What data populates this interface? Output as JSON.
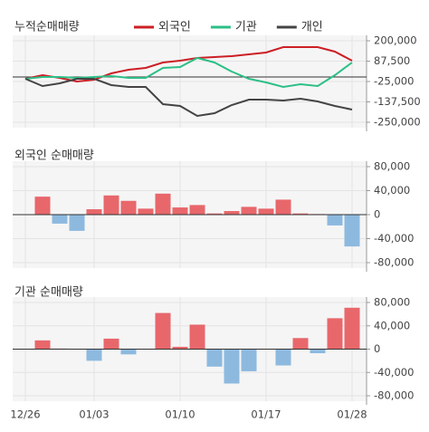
{
  "chart_data": [
    {
      "type": "line",
      "title": "누적순매매량",
      "series": [
        {
          "name": "외국인",
          "color": "#cc1f25",
          "values": [
            -10000,
            10000,
            -5000,
            -25000,
            -15000,
            20000,
            40000,
            50000,
            80000,
            90000,
            105000,
            110000,
            115000,
            125000,
            135000,
            165000,
            165000,
            165000,
            140000,
            90000
          ]
        },
        {
          "name": "기관",
          "color": "#2dbf87",
          "values": [
            -10000,
            0,
            0,
            -5000,
            0,
            5000,
            -5000,
            -5000,
            50000,
            55000,
            105000,
            80000,
            30000,
            -10000,
            -30000,
            -55000,
            -40000,
            -50000,
            10000,
            80000
          ]
        },
        {
          "name": "개인",
          "color": "#444444",
          "values": [
            -10000,
            -50000,
            -35000,
            -10000,
            -10000,
            -45000,
            -55000,
            -55000,
            -150000,
            -160000,
            -215000,
            -200000,
            -155000,
            -125000,
            -125000,
            -130000,
            -120000,
            -135000,
            -160000,
            -180000
          ]
        }
      ],
      "ylim": [
        -250000,
        200000
      ],
      "yticks": [
        {
          "value": 200000,
          "label": "200,000"
        },
        {
          "value": 87500,
          "label": "87,500"
        },
        {
          "value": -25000,
          "label": "-25,000"
        },
        {
          "value": -137500,
          "label": "-137,500"
        },
        {
          "value": -250000,
          "label": "-250,000"
        }
      ],
      "legend": "top",
      "grid": true
    },
    {
      "type": "bar",
      "title": "외국인 순매매량",
      "values": [
        0,
        30000,
        -15000,
        -27000,
        9000,
        32000,
        23000,
        10000,
        35000,
        12000,
        16000,
        2000,
        6000,
        13000,
        10000,
        25000,
        2000,
        1000,
        -18000,
        -53000
      ],
      "color_positive": "#e8676b",
      "color_negative": "#8db9df",
      "ylim": [
        -80000,
        80000
      ],
      "yticks": [
        {
          "value": 80000,
          "label": "80,000"
        },
        {
          "value": 40000,
          "label": "40,000"
        },
        0,
        {
          "value": -40000,
          "label": "-40,000"
        },
        {
          "value": -80000,
          "label": "-80,000"
        }
      ],
      "grid": true
    },
    {
      "type": "bar",
      "title": "기관 순매매량",
      "categories": [
        "12/26",
        null,
        null,
        null,
        "01/03",
        null,
        null,
        null,
        null,
        "01/10",
        null,
        null,
        null,
        null,
        "01/17",
        null,
        null,
        null,
        null,
        "01/28"
      ],
      "values": [
        0,
        15000,
        1000,
        0,
        -20000,
        18000,
        -9000,
        0,
        62000,
        4000,
        42000,
        -30000,
        -59000,
        -38000,
        0,
        -28000,
        19000,
        -7000,
        53000,
        71000
      ],
      "color_positive": "#e8676b",
      "color_negative": "#8db9df",
      "ylim": [
        -80000,
        80000
      ],
      "yticks": [
        {
          "value": 80000,
          "label": "80,000"
        },
        {
          "value": 40000,
          "label": "40,000"
        },
        0,
        {
          "value": -40000,
          "label": "-40,000"
        },
        {
          "value": -80000,
          "label": "-80,000"
        }
      ],
      "grid": true
    }
  ]
}
